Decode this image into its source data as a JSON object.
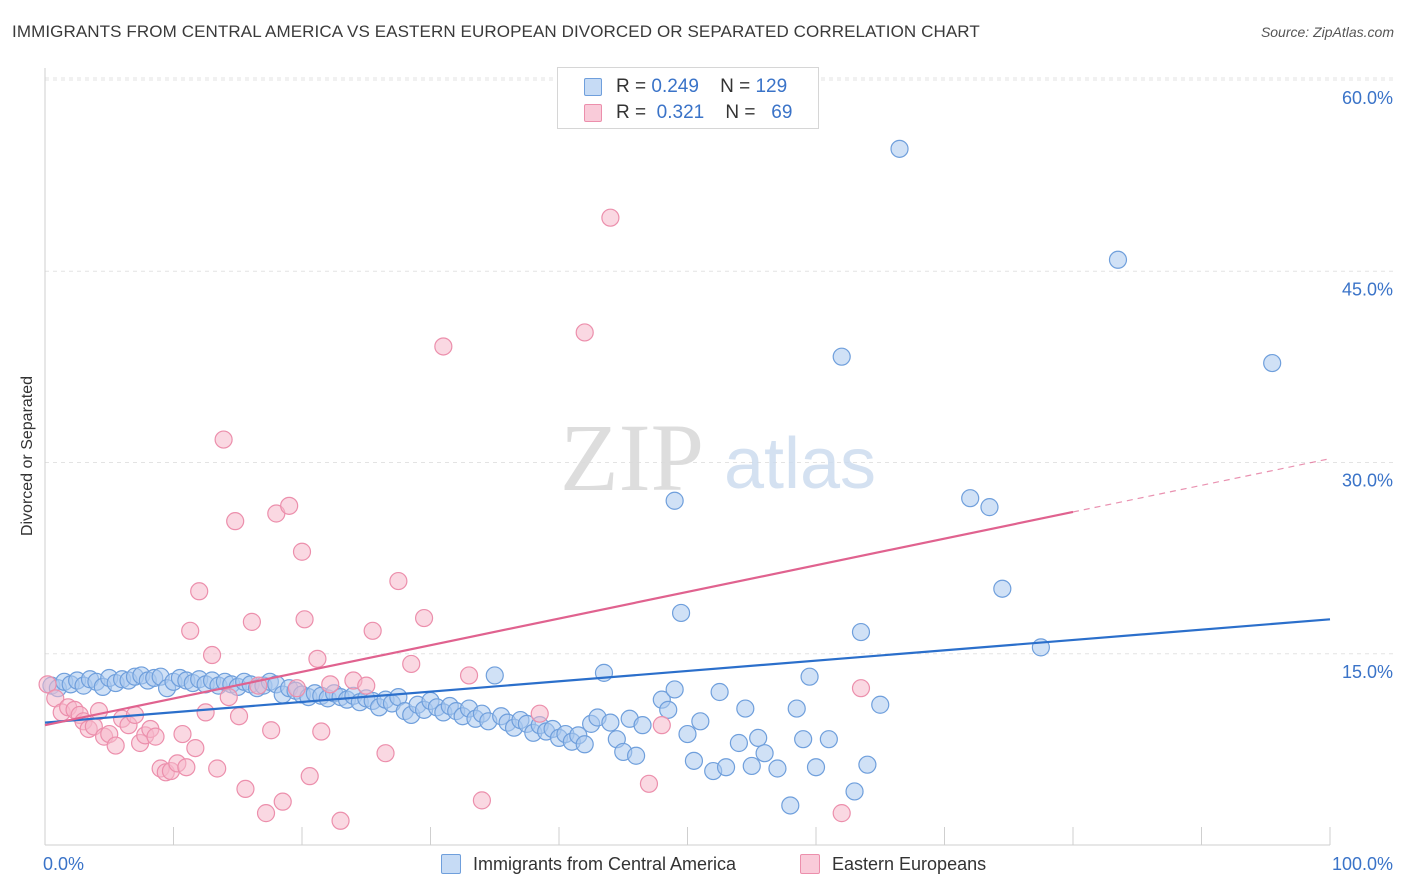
{
  "title": "IMMIGRANTS FROM CENTRAL AMERICA VS EASTERN EUROPEAN DIVORCED OR SEPARATED CORRELATION CHART",
  "source": "Source: ZipAtlas.com",
  "watermark": {
    "zip": "ZIP",
    "atlas": "atlas"
  },
  "legend": {
    "r_label": "R =",
    "n_label": "N =",
    "rows": [
      {
        "r": "0.249",
        "n": "129"
      },
      {
        "r": "0.321",
        "n": "69"
      }
    ]
  },
  "colors": {
    "blue_fill": "#a9c8ef",
    "blue_stroke": "#6f9fdc",
    "blue_line": "#2b6fcb",
    "pink_fill": "#f6b8cb",
    "pink_stroke": "#ec8fac",
    "pink_line": "#e0628f",
    "tick_text": "#3a73c8",
    "grid": "#e3e3e3"
  },
  "chart_data": {
    "type": "scatter",
    "xlabel": "",
    "ylabel": "Divorced or Separated",
    "xlim": [
      0,
      100
    ],
    "ylim": [
      0,
      60
    ],
    "x_ticks": [
      "0.0%",
      "100.0%"
    ],
    "y_ticks": [
      {
        "value": 15,
        "label": "15.0%"
      },
      {
        "value": 30,
        "label": "30.0%"
      },
      {
        "value": 45,
        "label": "45.0%"
      },
      {
        "value": 60,
        "label": "60.0%"
      }
    ],
    "legend_position": "top-center",
    "grid": true,
    "series": [
      {
        "name": "Immigrants from Central America",
        "color": "blue",
        "trend": {
          "x0": 0,
          "y0": 9.6,
          "x1": 100,
          "y1": 17.7
        },
        "points": [
          [
            0.5,
            12.5
          ],
          [
            1,
            12.3
          ],
          [
            1.5,
            12.8
          ],
          [
            2,
            12.6
          ],
          [
            2.5,
            12.9
          ],
          [
            3,
            12.5
          ],
          [
            3.5,
            13
          ],
          [
            4,
            12.8
          ],
          [
            4.5,
            12.4
          ],
          [
            5,
            13.1
          ],
          [
            5.5,
            12.7
          ],
          [
            6,
            13
          ],
          [
            6.5,
            12.9
          ],
          [
            7,
            13.2
          ],
          [
            7.5,
            13.3
          ],
          [
            8,
            12.9
          ],
          [
            8.5,
            13.1
          ],
          [
            9,
            13.2
          ],
          [
            9.5,
            12.3
          ],
          [
            10,
            12.8
          ],
          [
            10.5,
            13.1
          ],
          [
            11,
            12.9
          ],
          [
            11.5,
            12.7
          ],
          [
            12,
            13
          ],
          [
            12.5,
            12.6
          ],
          [
            13,
            12.9
          ],
          [
            13.5,
            12.5
          ],
          [
            14,
            12.8
          ],
          [
            14.5,
            12.6
          ],
          [
            15,
            12.4
          ],
          [
            15.5,
            12.8
          ],
          [
            16,
            12.6
          ],
          [
            16.5,
            12.3
          ],
          [
            17,
            12.5
          ],
          [
            17.5,
            12.8
          ],
          [
            18,
            12.6
          ],
          [
            18.5,
            11.8
          ],
          [
            19,
            12.3
          ],
          [
            19.5,
            12.1
          ],
          [
            20,
            11.8
          ],
          [
            20.5,
            11.6
          ],
          [
            21,
            11.9
          ],
          [
            21.5,
            11.7
          ],
          [
            22,
            11.5
          ],
          [
            22.5,
            11.9
          ],
          [
            23,
            11.6
          ],
          [
            23.5,
            11.4
          ],
          [
            24,
            11.7
          ],
          [
            24.5,
            11.2
          ],
          [
            25,
            11.5
          ],
          [
            25.5,
            11.3
          ],
          [
            26,
            10.8
          ],
          [
            26.5,
            11.4
          ],
          [
            27,
            11.1
          ],
          [
            27.5,
            11.6
          ],
          [
            28,
            10.5
          ],
          [
            28.5,
            10.2
          ],
          [
            29,
            11
          ],
          [
            29.5,
            10.6
          ],
          [
            30,
            11.3
          ],
          [
            30.5,
            10.8
          ],
          [
            31,
            10.4
          ],
          [
            31.5,
            10.9
          ],
          [
            32,
            10.5
          ],
          [
            32.5,
            10.1
          ],
          [
            33,
            10.7
          ],
          [
            33.5,
            9.9
          ],
          [
            34,
            10.3
          ],
          [
            34.5,
            9.7
          ],
          [
            35,
            13.3
          ],
          [
            35.5,
            10.1
          ],
          [
            36,
            9.6
          ],
          [
            36.5,
            9.2
          ],
          [
            37,
            9.8
          ],
          [
            37.5,
            9.5
          ],
          [
            38,
            8.8
          ],
          [
            38.5,
            9.4
          ],
          [
            39,
            8.9
          ],
          [
            39.5,
            9.1
          ],
          [
            40,
            8.4
          ],
          [
            40.5,
            8.7
          ],
          [
            41,
            8.1
          ],
          [
            41.5,
            8.6
          ],
          [
            42,
            7.9
          ],
          [
            42.5,
            9.5
          ],
          [
            43,
            10
          ],
          [
            43.5,
            13.5
          ],
          [
            44,
            9.6
          ],
          [
            44.5,
            8.3
          ],
          [
            45,
            7.3
          ],
          [
            45.5,
            9.9
          ],
          [
            46,
            7
          ],
          [
            46.5,
            9.4
          ],
          [
            48,
            11.4
          ],
          [
            48.5,
            10.6
          ],
          [
            49,
            12.2
          ],
          [
            49,
            27
          ],
          [
            49.5,
            18.2
          ],
          [
            50,
            8.7
          ],
          [
            50.5,
            6.6
          ],
          [
            51,
            9.7
          ],
          [
            52,
            5.8
          ],
          [
            52.5,
            12
          ],
          [
            53,
            6.1
          ],
          [
            54,
            8
          ],
          [
            54.5,
            10.7
          ],
          [
            55,
            6.2
          ],
          [
            55.5,
            8.4
          ],
          [
            56,
            7.2
          ],
          [
            57,
            6
          ],
          [
            58,
            3.1
          ],
          [
            58.5,
            10.7
          ],
          [
            59,
            8.3
          ],
          [
            59.5,
            13.2
          ],
          [
            60,
            6.1
          ],
          [
            61,
            8.3
          ],
          [
            62,
            38.3
          ],
          [
            63,
            4.2
          ],
          [
            63.5,
            16.7
          ],
          [
            64,
            6.3
          ],
          [
            65,
            11
          ],
          [
            66.5,
            54.6
          ],
          [
            72,
            27.2
          ],
          [
            73.5,
            26.5
          ],
          [
            74.5,
            20.1
          ],
          [
            77.5,
            15.5
          ],
          [
            83.5,
            45.9
          ],
          [
            95.5,
            37.8
          ]
        ]
      },
      {
        "name": "Eastern Europeans",
        "color": "pink",
        "trend": {
          "x0": 0,
          "y0": 9.4,
          "x1": 100,
          "y1": 30.3,
          "solid_to": 80
        },
        "points": [
          [
            0.2,
            12.6
          ],
          [
            0.8,
            11.5
          ],
          [
            1.3,
            10.4
          ],
          [
            1.8,
            10.8
          ],
          [
            2.3,
            10.6
          ],
          [
            2.7,
            10.2
          ],
          [
            3,
            9.7
          ],
          [
            3.4,
            9.1
          ],
          [
            3.8,
            9.3
          ],
          [
            4.2,
            10.5
          ],
          [
            4.6,
            8.5
          ],
          [
            5,
            8.7
          ],
          [
            5.5,
            7.8
          ],
          [
            6,
            9.9
          ],
          [
            6.5,
            9.4
          ],
          [
            7,
            10.2
          ],
          [
            7.4,
            8
          ],
          [
            7.8,
            8.6
          ],
          [
            8.2,
            9.1
          ],
          [
            8.6,
            8.5
          ],
          [
            9,
            6
          ],
          [
            9.4,
            5.7
          ],
          [
            9.8,
            5.8
          ],
          [
            10.3,
            6.4
          ],
          [
            10.7,
            8.7
          ],
          [
            11,
            6.1
          ],
          [
            11.3,
            16.8
          ],
          [
            11.7,
            7.6
          ],
          [
            12,
            19.9
          ],
          [
            12.5,
            10.4
          ],
          [
            13,
            14.9
          ],
          [
            13.4,
            6
          ],
          [
            13.9,
            31.8
          ],
          [
            14.3,
            11.6
          ],
          [
            14.8,
            25.4
          ],
          [
            15.1,
            10.1
          ],
          [
            15.6,
            4.4
          ],
          [
            16.1,
            17.5
          ],
          [
            16.6,
            12.5
          ],
          [
            17.2,
            2.5
          ],
          [
            17.6,
            9
          ],
          [
            18,
            26
          ],
          [
            18.5,
            3.4
          ],
          [
            19,
            26.6
          ],
          [
            19.6,
            12.3
          ],
          [
            20,
            23
          ],
          [
            20.2,
            17.7
          ],
          [
            20.6,
            5.4
          ],
          [
            21.2,
            14.6
          ],
          [
            21.5,
            8.9
          ],
          [
            22.2,
            12.6
          ],
          [
            23,
            1.9
          ],
          [
            24,
            12.9
          ],
          [
            25,
            12.5
          ],
          [
            25.5,
            16.8
          ],
          [
            26.5,
            7.2
          ],
          [
            27.5,
            20.7
          ],
          [
            28.5,
            14.2
          ],
          [
            29.5,
            17.8
          ],
          [
            31,
            39.1
          ],
          [
            33,
            13.3
          ],
          [
            34,
            3.5
          ],
          [
            38.5,
            10.3
          ],
          [
            42,
            40.2
          ],
          [
            44,
            49.2
          ],
          [
            47,
            4.8
          ],
          [
            48,
            9.4
          ],
          [
            62,
            2.5
          ],
          [
            63.5,
            12.3
          ]
        ]
      }
    ]
  },
  "bottom_legend": [
    "Immigrants from Central America",
    "Eastern Europeans"
  ]
}
